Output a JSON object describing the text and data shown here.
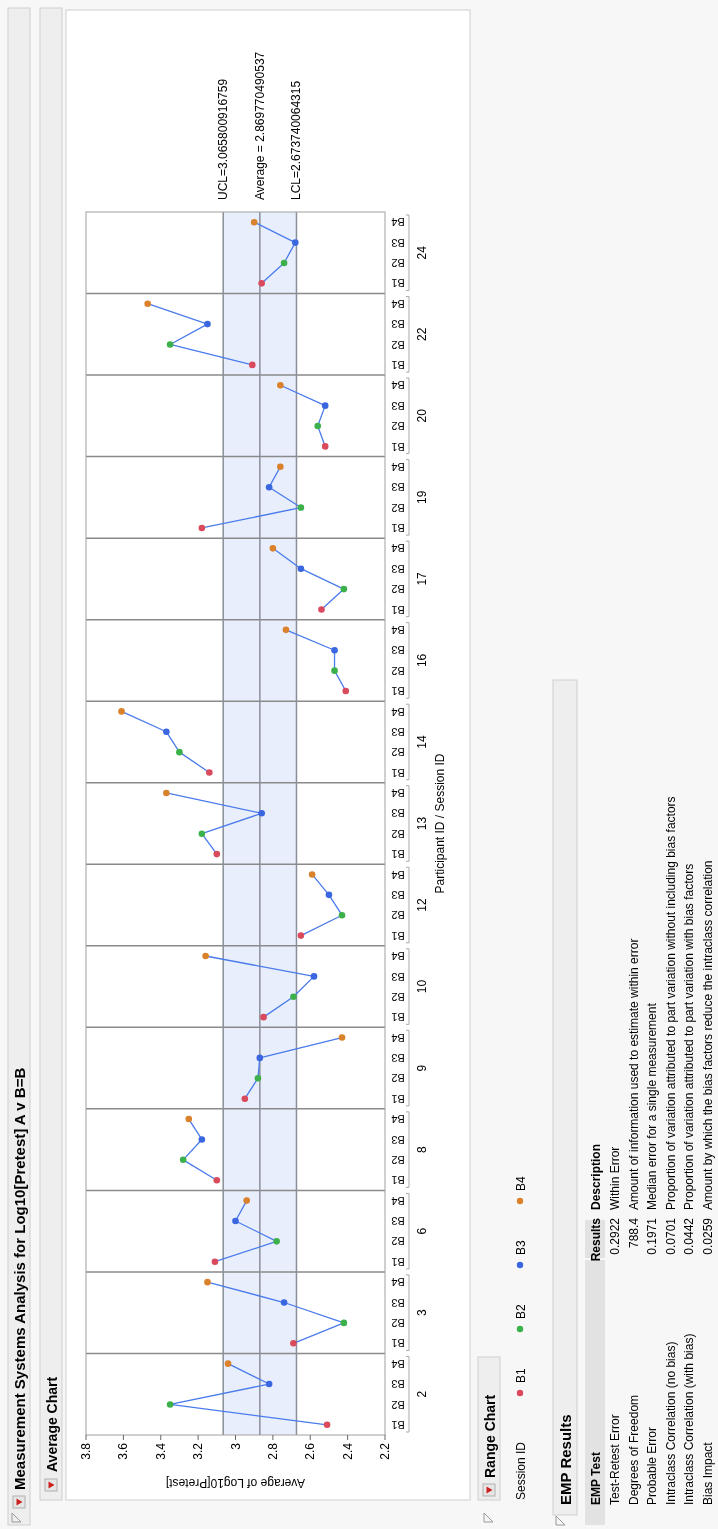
{
  "chart_data": [
    {
      "type": "scatter",
      "orientation": "horizontal",
      "title": "Measurement Systems Analysis for Log10[Pretest] A v B=B",
      "subtitle": "Average Chart",
      "xlabel": "Average of Log10[Pretest]",
      "ylabel": "Participant ID / Session ID",
      "legend_title": "Session ID",
      "legend": "right",
      "marker": "circle",
      "grid": "y",
      "annotations": [
        "24",
        "22",
        "20",
        "19",
        "17",
        "16",
        "14",
        "13",
        "12",
        "10",
        "9",
        "8",
        "6",
        "3",
        "2",
        "Range Chart"
      ],
      "categories": [
        "B4",
        "B3",
        "B2",
        "B1",
        "B4",
        "B3",
        "B2",
        "B1",
        "B4",
        "B3",
        "B2",
        "B1",
        "B4",
        "B3",
        "B2",
        "B1",
        "B4",
        "B3",
        "B2",
        "B1",
        "B4",
        "B3",
        "B2",
        "B1",
        "B4",
        "B3",
        "B2",
        "B1",
        "B4",
        "B3",
        "B2",
        "B1",
        "B4",
        "B3",
        "B2",
        "B1",
        "B4",
        "B3",
        "B2",
        "B1",
        "B4",
        "B3",
        "B2",
        "B1",
        "B4",
        "B3",
        "B2",
        "B1",
        "B4",
        "B3",
        "B2",
        "B1",
        "B4",
        "B3",
        "B2",
        "B1",
        "B4",
        "B3",
        "B2",
        "B1"
      ],
      "xlim": [
        3.8,
        2.2
      ],
      "xticks": [
        3.8,
        3.6,
        3.4,
        3.2,
        3,
        2.8,
        2.6,
        2.4,
        2.2
      ],
      "ref_lines": [
        {
          "axis": "x",
          "value": 3.065800916759,
          "label": "UCL=3.065800916759",
          "color": "#8a8f99"
        },
        {
          "axis": "x",
          "value": 2.869770490537,
          "label": "Average = 2.869770490537",
          "color": "#8a8f99"
        },
        {
          "axis": "x",
          "value": 2.673740064315,
          "label": "LCL=2.673740064315",
          "color": "#8a8f99"
        }
      ],
      "bands": [
        {
          "axis": "x",
          "from": 2.673740064315,
          "to": 3.065800916759,
          "color": "#e8eefc"
        }
      ],
      "series": [
        {
          "name": "B1",
          "color": "#d94a5c",
          "values": [
            null,
            null,
            null,
            2.86,
            null,
            null,
            null,
            2.91,
            null,
            null,
            null,
            2.52,
            null,
            null,
            null,
            3.18,
            null,
            null,
            null,
            2.54,
            null,
            null,
            null,
            2.41,
            null,
            null,
            null,
            3.14,
            null,
            null,
            null,
            3.1,
            null,
            null,
            null,
            2.65,
            null,
            null,
            null,
            2.85,
            null,
            null,
            null,
            2.95,
            null,
            null,
            null,
            3.1,
            null,
            null,
            null,
            3.11,
            null,
            null,
            null,
            2.69,
            null,
            null,
            null,
            2.51
          ]
        },
        {
          "name": "B2",
          "color": "#3cb04a",
          "values": [
            null,
            null,
            2.74,
            null,
            null,
            null,
            3.35,
            null,
            null,
            null,
            2.56,
            null,
            null,
            null,
            2.65,
            null,
            null,
            null,
            2.42,
            null,
            null,
            null,
            2.47,
            null,
            null,
            null,
            3.3,
            null,
            null,
            null,
            3.18,
            null,
            null,
            null,
            2.43,
            null,
            null,
            null,
            2.69,
            null,
            null,
            null,
            2.88,
            null,
            null,
            null,
            3.28,
            null,
            null,
            null,
            2.78,
            null,
            null,
            null,
            2.42,
            null,
            null,
            null,
            3.35,
            null
          ]
        },
        {
          "name": "B3",
          "color": "#3a66e0",
          "values": [
            null,
            2.68,
            null,
            null,
            null,
            3.15,
            null,
            null,
            null,
            2.52,
            null,
            null,
            null,
            2.82,
            null,
            null,
            null,
            2.65,
            null,
            null,
            null,
            2.47,
            null,
            null,
            null,
            3.37,
            null,
            null,
            null,
            2.86,
            null,
            null,
            null,
            2.5,
            null,
            null,
            null,
            2.58,
            null,
            null,
            null,
            2.87,
            null,
            null,
            null,
            3.18,
            null,
            null,
            null,
            3.0,
            null,
            null,
            null,
            2.74,
            null,
            null,
            null,
            2.82,
            null,
            null
          ]
        },
        {
          "name": "B4",
          "color": "#d9822b",
          "values": [
            2.9,
            null,
            null,
            null,
            3.47,
            null,
            null,
            null,
            2.76,
            null,
            null,
            null,
            2.76,
            null,
            null,
            null,
            2.8,
            null,
            null,
            null,
            2.73,
            null,
            null,
            null,
            3.61,
            null,
            null,
            null,
            3.37,
            null,
            null,
            null,
            2.59,
            null,
            null,
            null,
            3.16,
            null,
            null,
            null,
            2.43,
            null,
            null,
            null,
            3.25,
            null,
            null,
            null,
            2.94,
            null,
            null,
            null,
            3.15,
            null,
            null,
            null,
            3.04,
            null,
            null,
            null
          ]
        },
        {
          "type": "line",
          "marker": "none",
          "color": "#4a7bec",
          "values": [
            2.9,
            2.68,
            2.74,
            2.86,
            null,
            null,
            null,
            null,
            null,
            null,
            null,
            null,
            null,
            null,
            null,
            null,
            null,
            null,
            null,
            null,
            null,
            null,
            null,
            null,
            null,
            null,
            null,
            null,
            null,
            null,
            null,
            null,
            null,
            null,
            null,
            null,
            null,
            null,
            null,
            null,
            null,
            null,
            null,
            null,
            null,
            null,
            null,
            null,
            null,
            null,
            null,
            null,
            null,
            null,
            null,
            null,
            null,
            null,
            null,
            null
          ]
        },
        {
          "type": "line",
          "marker": "none",
          "color": "#4a7bec",
          "values": [
            null,
            null,
            null,
            null,
            3.47,
            3.15,
            3.35,
            2.91,
            null,
            null,
            null,
            null,
            null,
            null,
            null,
            null,
            null,
            null,
            null,
            null,
            null,
            null,
            null,
            null,
            null,
            null,
            null,
            null,
            null,
            null,
            null,
            null,
            null,
            null,
            null,
            null,
            null,
            null,
            null,
            null,
            null,
            null,
            null,
            null,
            null,
            null,
            null,
            null,
            null,
            null,
            null,
            null,
            null,
            null,
            null,
            null,
            null,
            null,
            null,
            null
          ]
        },
        {
          "type": "line",
          "marker": "none",
          "color": "#4a7bec",
          "values": [
            null,
            null,
            null,
            null,
            null,
            null,
            null,
            null,
            2.76,
            2.52,
            2.56,
            2.52,
            null,
            null,
            null,
            null,
            null,
            null,
            null,
            null,
            null,
            null,
            null,
            null,
            null,
            null,
            null,
            null,
            null,
            null,
            null,
            null,
            null,
            null,
            null,
            null,
            null,
            null,
            null,
            null,
            null,
            null,
            null,
            null,
            null,
            null,
            null,
            null,
            null,
            null,
            null,
            null,
            null,
            null,
            null,
            null,
            null,
            null,
            null,
            null
          ]
        },
        {
          "type": "line",
          "marker": "none",
          "color": "#4a7bec",
          "values": [
            null,
            null,
            null,
            null,
            null,
            null,
            null,
            null,
            null,
            null,
            null,
            null,
            2.76,
            2.82,
            2.65,
            3.18,
            null,
            null,
            null,
            null,
            null,
            null,
            null,
            null,
            null,
            null,
            null,
            null,
            null,
            null,
            null,
            null,
            null,
            null,
            null,
            null,
            null,
            null,
            null,
            null,
            null,
            null,
            null,
            null,
            null,
            null,
            null,
            null,
            null,
            null,
            null,
            null,
            null,
            null,
            null,
            null,
            null,
            null,
            null,
            null
          ]
        },
        {
          "type": "line",
          "marker": "none",
          "color": "#4a7bec",
          "values": [
            null,
            null,
            null,
            null,
            null,
            null,
            null,
            null,
            null,
            null,
            null,
            null,
            null,
            null,
            null,
            null,
            2.8,
            2.65,
            2.42,
            2.54,
            null,
            null,
            null,
            null,
            null,
            null,
            null,
            null,
            null,
            null,
            null,
            null,
            null,
            null,
            null,
            null,
            null,
            null,
            null,
            null,
            null,
            null,
            null,
            null,
            null,
            null,
            null,
            null,
            null,
            null,
            null,
            null,
            null,
            null,
            null,
            null,
            null,
            null,
            null,
            null
          ]
        },
        {
          "type": "line",
          "marker": "none",
          "color": "#4a7bec",
          "values": [
            null,
            null,
            null,
            null,
            null,
            null,
            null,
            null,
            null,
            null,
            null,
            null,
            null,
            null,
            null,
            null,
            null,
            null,
            null,
            null,
            2.73,
            2.47,
            2.47,
            2.41,
            null,
            null,
            null,
            null,
            null,
            null,
            null,
            null,
            null,
            null,
            null,
            null,
            null,
            null,
            null,
            null,
            null,
            null,
            null,
            null,
            null,
            null,
            null,
            null,
            null,
            null,
            null,
            null,
            null,
            null,
            null,
            null,
            null,
            null,
            null,
            null
          ]
        },
        {
          "type": "line",
          "marker": "none",
          "color": "#4a7bec",
          "values": [
            null,
            null,
            null,
            null,
            null,
            null,
            null,
            null,
            null,
            null,
            null,
            null,
            null,
            null,
            null,
            null,
            null,
            null,
            null,
            null,
            null,
            null,
            null,
            null,
            3.61,
            3.37,
            3.3,
            3.14,
            null,
            null,
            null,
            null,
            null,
            null,
            null,
            null,
            null,
            null,
            null,
            null,
            null,
            null,
            null,
            null,
            null,
            null,
            null,
            null,
            null,
            null,
            null,
            null,
            null,
            null,
            null,
            null,
            null,
            null,
            null,
            null
          ]
        },
        {
          "type": "line",
          "marker": "none",
          "color": "#4a7bec",
          "values": [
            null,
            null,
            null,
            null,
            null,
            null,
            null,
            null,
            null,
            null,
            null,
            null,
            null,
            null,
            null,
            null,
            null,
            null,
            null,
            null,
            null,
            null,
            null,
            null,
            null,
            null,
            null,
            null,
            3.37,
            2.86,
            3.18,
            3.1,
            null,
            null,
            null,
            null,
            null,
            null,
            null,
            null,
            null,
            null,
            null,
            null,
            null,
            null,
            null,
            null,
            null,
            null,
            null,
            null,
            null,
            null,
            null,
            null,
            null,
            null,
            null,
            null
          ]
        },
        {
          "type": "line",
          "marker": "none",
          "color": "#4a7bec",
          "values": [
            null,
            null,
            null,
            null,
            null,
            null,
            null,
            null,
            null,
            null,
            null,
            null,
            null,
            null,
            null,
            null,
            null,
            null,
            null,
            null,
            null,
            null,
            null,
            null,
            null,
            null,
            null,
            null,
            null,
            null,
            null,
            null,
            2.59,
            2.5,
            2.43,
            2.65,
            null,
            null,
            null,
            null,
            null,
            null,
            null,
            null,
            null,
            null,
            null,
            null,
            null,
            null,
            null,
            null,
            null,
            null,
            null,
            null,
            null,
            null,
            null,
            null
          ]
        },
        {
          "type": "line",
          "marker": "none",
          "color": "#4a7bec",
          "values": [
            null,
            null,
            null,
            null,
            null,
            null,
            null,
            null,
            null,
            null,
            null,
            null,
            null,
            null,
            null,
            null,
            null,
            null,
            null,
            null,
            null,
            null,
            null,
            null,
            null,
            null,
            null,
            null,
            null,
            null,
            null,
            null,
            null,
            null,
            null,
            null,
            3.16,
            2.58,
            2.69,
            2.85,
            null,
            null,
            null,
            null,
            null,
            null,
            null,
            null,
            null,
            null,
            null,
            null,
            null,
            null,
            null,
            null,
            null,
            null,
            null,
            null
          ]
        },
        {
          "type": "line",
          "marker": "none",
          "color": "#4a7bec",
          "values": [
            null,
            null,
            null,
            null,
            null,
            null,
            null,
            null,
            null,
            null,
            null,
            null,
            null,
            null,
            null,
            null,
            null,
            null,
            null,
            null,
            null,
            null,
            null,
            null,
            null,
            null,
            null,
            null,
            null,
            null,
            null,
            null,
            null,
            null,
            null,
            null,
            null,
            null,
            null,
            null,
            2.43,
            2.87,
            2.88,
            2.95,
            null,
            null,
            null,
            null,
            null,
            null,
            null,
            null,
            null,
            null,
            null,
            null,
            null,
            null,
            null,
            null
          ]
        },
        {
          "type": "line",
          "marker": "none",
          "color": "#4a7bec",
          "values": [
            null,
            null,
            null,
            null,
            null,
            null,
            null,
            null,
            null,
            null,
            null,
            null,
            null,
            null,
            null,
            null,
            null,
            null,
            null,
            null,
            null,
            null,
            null,
            null,
            null,
            null,
            null,
            null,
            null,
            null,
            null,
            null,
            null,
            null,
            null,
            null,
            null,
            null,
            null,
            null,
            null,
            null,
            null,
            null,
            3.25,
            3.18,
            3.28,
            3.1,
            null,
            null,
            null,
            null,
            null,
            null,
            null,
            null,
            null,
            null,
            null,
            null
          ]
        },
        {
          "type": "line",
          "marker": "none",
          "color": "#4a7bec",
          "values": [
            null,
            null,
            null,
            null,
            null,
            null,
            null,
            null,
            null,
            null,
            null,
            null,
            null,
            null,
            null,
            null,
            null,
            null,
            null,
            null,
            null,
            null,
            null,
            null,
            null,
            null,
            null,
            null,
            null,
            null,
            null,
            null,
            null,
            null,
            null,
            null,
            null,
            null,
            null,
            null,
            null,
            null,
            null,
            null,
            null,
            null,
            null,
            null,
            2.94,
            3.0,
            2.78,
            3.11,
            null,
            null,
            null,
            null,
            null,
            null,
            null,
            null
          ]
        },
        {
          "type": "line",
          "marker": "none",
          "color": "#4a7bec",
          "values": [
            null,
            null,
            null,
            null,
            null,
            null,
            null,
            null,
            null,
            null,
            null,
            null,
            null,
            null,
            null,
            null,
            null,
            null,
            null,
            null,
            null,
            null,
            null,
            null,
            null,
            null,
            null,
            null,
            null,
            null,
            null,
            null,
            null,
            null,
            null,
            null,
            null,
            null,
            null,
            null,
            null,
            null,
            null,
            null,
            null,
            null,
            null,
            null,
            null,
            null,
            null,
            null,
            3.15,
            2.74,
            2.42,
            2.69,
            null,
            null,
            null,
            null
          ]
        },
        {
          "type": "line",
          "marker": "none",
          "color": "#4a7bec",
          "values": [
            null,
            null,
            null,
            null,
            null,
            null,
            null,
            null,
            null,
            null,
            null,
            null,
            null,
            null,
            null,
            null,
            null,
            null,
            null,
            null,
            null,
            null,
            null,
            null,
            null,
            null,
            null,
            null,
            null,
            null,
            null,
            null,
            null,
            null,
            null,
            null,
            null,
            null,
            null,
            null,
            null,
            null,
            null,
            null,
            null,
            null,
            null,
            null,
            null,
            null,
            null,
            null,
            null,
            null,
            null,
            null,
            3.04,
            2.82,
            3.35,
            2.51
          ]
        }
      ]
    },
    {
      "type": "other",
      "title": "EMP Results",
      "xlabel": "EMP Test",
      "ylabel": "Results",
      "y2label": "Description",
      "data_labels": true,
      "categories": [
        "Test-Retest Error",
        "Degrees of Freedom",
        "Probable Error",
        "Intraclass Correlation (no bias)",
        "Intraclass Correlation (with bias)",
        "Bias Impact"
      ],
      "values": [
        0.2922,
        788.4,
        0.1971,
        0.0701,
        0.0442,
        0.0259
      ],
      "annotations": [
        "Within Error",
        "Amount of information used to estimate within error",
        "Median error for a single measurement",
        "Proportion of variation attributed to part variation without including bias factors",
        "Proportion of variation attributed to part variation with bias factors",
        "Amount by which the bias factors reduce the intraclass correlation"
      ]
    }
  ]
}
